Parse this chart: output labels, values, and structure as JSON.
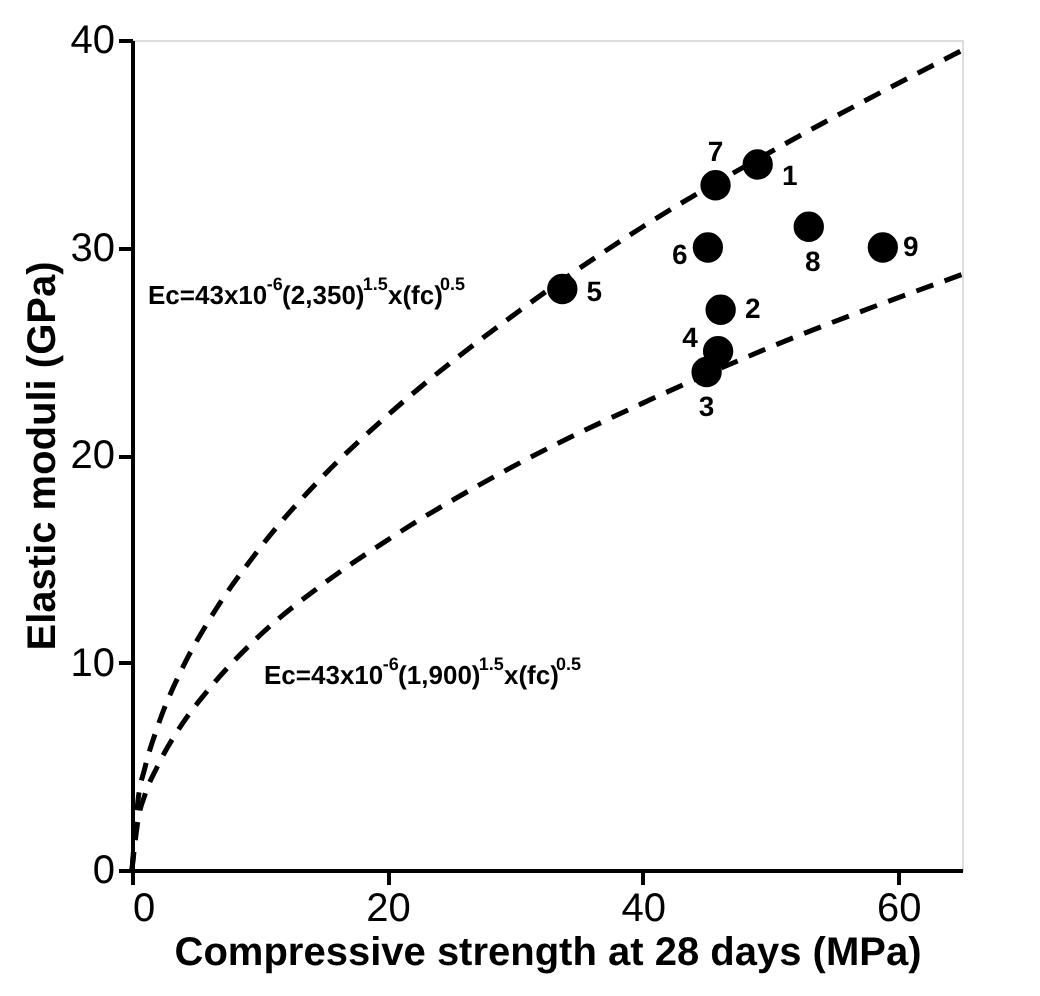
{
  "chart_data": {
    "type": "scatter",
    "xlabel": "Compressive strength at 28 days (MPa)",
    "ylabel": "Elastic moduli (GPa)",
    "xlim": [
      0,
      65
    ],
    "xticks": [
      0,
      20,
      40,
      60
    ],
    "ylim": [
      0,
      40
    ],
    "yticks": [
      0,
      10,
      20,
      30,
      40
    ],
    "grid": false,
    "series": [
      {
        "type": "line",
        "line_style": "dashed",
        "color": "#000000",
        "x": [
          0,
          0.5,
          1,
          2,
          4,
          6,
          10,
          15,
          20,
          30,
          40,
          50,
          65
        ],
        "values": [
          0,
          3.5,
          4.9,
          6.9,
          9.8,
          12.0,
          15.5,
          19.0,
          21.9,
          26.8,
          31.0,
          34.6,
          39.5
        ]
      },
      {
        "type": "line",
        "line_style": "dashed",
        "color": "#000000",
        "x": [
          0,
          0.5,
          1,
          2,
          4,
          6,
          10,
          15,
          20,
          30,
          40,
          50,
          65
        ],
        "values": [
          0,
          2.5,
          3.6,
          5.0,
          7.1,
          8.7,
          11.3,
          13.8,
          15.9,
          19.5,
          22.5,
          25.2,
          28.7
        ]
      },
      {
        "marker": "circle",
        "color": "#000000",
        "x": [
          49.0,
          46.1,
          45.0,
          45.9,
          33.7,
          45.1,
          45.7,
          53.0,
          58.8
        ],
        "values": [
          34.0,
          27.0,
          24.0,
          25.0,
          28.0,
          30.0,
          33.0,
          31.0,
          30.0
        ]
      }
    ],
    "annotations": [
      {
        "text": "1",
        "x": 49.0,
        "y": 34.0
      },
      {
        "text": "2",
        "x": 46.1,
        "y": 27.0
      },
      {
        "text": "3",
        "x": 45.0,
        "y": 24.0
      },
      {
        "text": "4",
        "x": 45.9,
        "y": 25.0
      },
      {
        "text": "5",
        "x": 33.7,
        "y": 28.0
      },
      {
        "text": "6",
        "x": 45.1,
        "y": 30.0
      },
      {
        "text": "7",
        "x": 45.7,
        "y": 33.0
      },
      {
        "text": "8",
        "x": 53.0,
        "y": 31.0
      },
      {
        "text": "9",
        "x": 58.8,
        "y": 30.0
      },
      "Ec=43x10$^{-6}$(2,350)$^{1.5}$x(fc)$^{0.5}$",
      "Ec=43x10$^{-6}$(1,900)$^{1.5}$x(fc)$^{0.5}$"
    ]
  }
}
